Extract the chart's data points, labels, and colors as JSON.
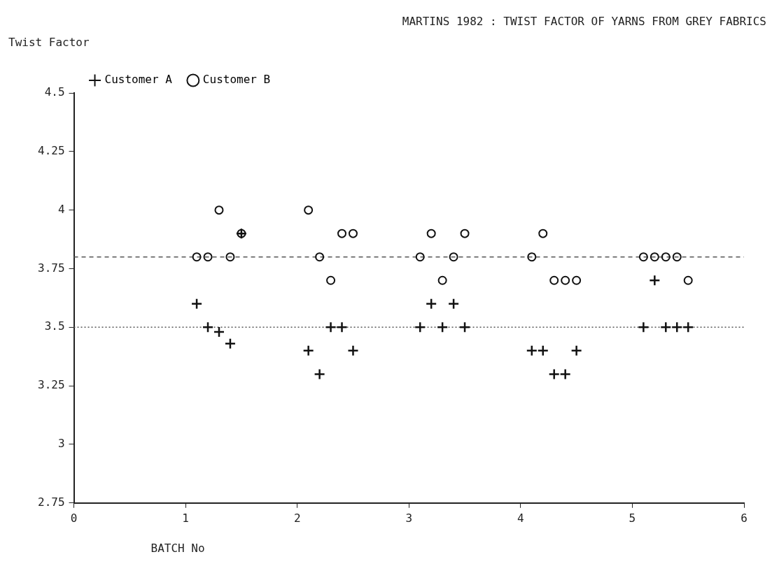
{
  "chart_data": {
    "type": "scatter",
    "title": "MARTINS 1982 : TWIST FACTOR OF YARNS FROM GREY FABRICS",
    "xlabel": "BATCH No",
    "ylabel": "Twist Factor",
    "xlim": [
      0,
      6
    ],
    "xticks": [
      {
        "value": 0,
        "label": "0"
      },
      1,
      2,
      3,
      4,
      5,
      6
    ],
    "ylim": [
      2.75,
      4.5
    ],
    "yticks": [
      2.75,
      3,
      3.25,
      3.5,
      3.75,
      4,
      4.25,
      4.5
    ],
    "grid": false,
    "legend": "top left",
    "ref_lines": [
      {
        "axis": "y",
        "value": 3.8,
        "line_style": "dashed",
        "color": "#555555"
      },
      {
        "axis": "y",
        "value": 3.5,
        "line_style": "dotted",
        "color": "#555555"
      }
    ],
    "series": [
      {
        "name": "Customer A",
        "color": "#111111",
        "marker": "cross",
        "x": [
          1.1,
          1.2,
          1.3,
          1.4,
          1.5,
          2.1,
          2.2,
          2.3,
          2.4,
          2.5,
          3.1,
          3.2,
          3.3,
          3.4,
          3.5,
          4.1,
          4.2,
          4.3,
          4.4,
          4.5,
          5.1,
          5.2,
          5.3,
          5.4,
          5.5
        ],
        "values": [
          3.6,
          3.5,
          3.48,
          3.43,
          3.9,
          3.4,
          3.3,
          3.5,
          3.5,
          3.4,
          3.5,
          3.6,
          3.5,
          3.6,
          3.5,
          3.4,
          3.4,
          3.3,
          3.3,
          3.4,
          3.5,
          3.7,
          3.5,
          3.5,
          3.5
        ]
      },
      {
        "name": "Customer B",
        "color": "#111111",
        "marker": "circle",
        "x": [
          1.1,
          1.2,
          1.3,
          1.4,
          1.5,
          2.1,
          2.2,
          2.3,
          2.4,
          2.5,
          3.1,
          3.2,
          3.3,
          3.4,
          3.5,
          4.1,
          4.2,
          4.3,
          4.4,
          4.5,
          5.1,
          5.2,
          5.3,
          5.4,
          5.5
        ],
        "values": [
          3.8,
          3.8,
          4.0,
          3.8,
          3.9,
          4.0,
          3.8,
          3.7,
          3.9,
          3.9,
          3.8,
          3.9,
          3.7,
          3.8,
          3.9,
          3.8,
          3.9,
          3.7,
          3.7,
          3.7,
          3.8,
          3.8,
          3.8,
          3.8,
          3.7
        ]
      }
    ]
  }
}
